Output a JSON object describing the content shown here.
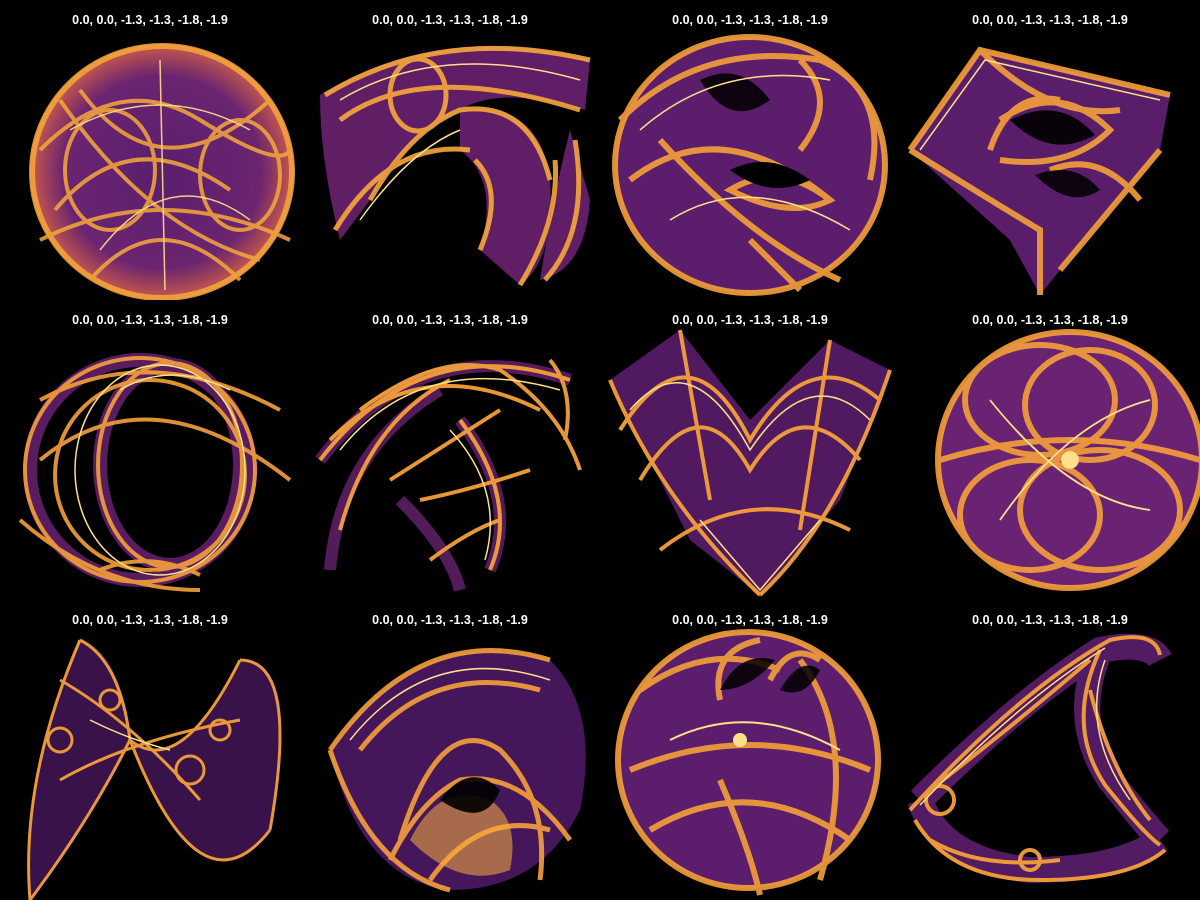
{
  "colors": {
    "background": "#000000",
    "title_text": "#ffffff",
    "palette_dark": "#4a1a62",
    "palette_mid": "#c2406a",
    "palette_orange": "#f08c2e",
    "palette_bright": "#fcd55c",
    "palette_white": "#fff6c8"
  },
  "panels": [
    {
      "title": "0.0, 0.0, -1.3, -1.3, -1.8, -1.9",
      "shape": "round-disc-loops"
    },
    {
      "title": "0.0, 0.0, -1.3, -1.3, -1.8, -1.9",
      "shape": "ribbon-arch-three-lobes"
    },
    {
      "title": "0.0, 0.0, -1.3, -1.3, -1.8, -1.9",
      "shape": "sphere-with-folds"
    },
    {
      "title": "0.0, 0.0, -1.3, -1.3, -1.8, -1.9",
      "shape": "diamond-twisted"
    },
    {
      "title": "0.0, 0.0, -1.3, -1.3, -1.8, -1.9",
      "shape": "interlocked-rings"
    },
    {
      "title": "0.0, 0.0, -1.3, -1.3, -1.8, -1.9",
      "shape": "scattered-arcs"
    },
    {
      "title": "0.0, 0.0, -1.3, -1.3, -1.8, -1.9",
      "shape": "zigzag-bowl"
    },
    {
      "title": "0.0, 0.0, -1.3, -1.3, -1.8, -1.9",
      "shape": "disc-figure-eight"
    },
    {
      "title": "0.0, 0.0, -1.3, -1.3, -1.8, -1.9",
      "shape": "butterfly-wave"
    },
    {
      "title": "0.0, 0.0, -1.3, -1.3, -1.8, -1.9",
      "shape": "ribbon-torus"
    },
    {
      "title": "0.0, 0.0, -1.3, -1.3, -1.8, -1.9",
      "shape": "sphere-crescent-folds"
    },
    {
      "title": "0.0, 0.0, -1.3, -1.3, -1.8, -1.9",
      "shape": "triangular-ribbon"
    }
  ]
}
